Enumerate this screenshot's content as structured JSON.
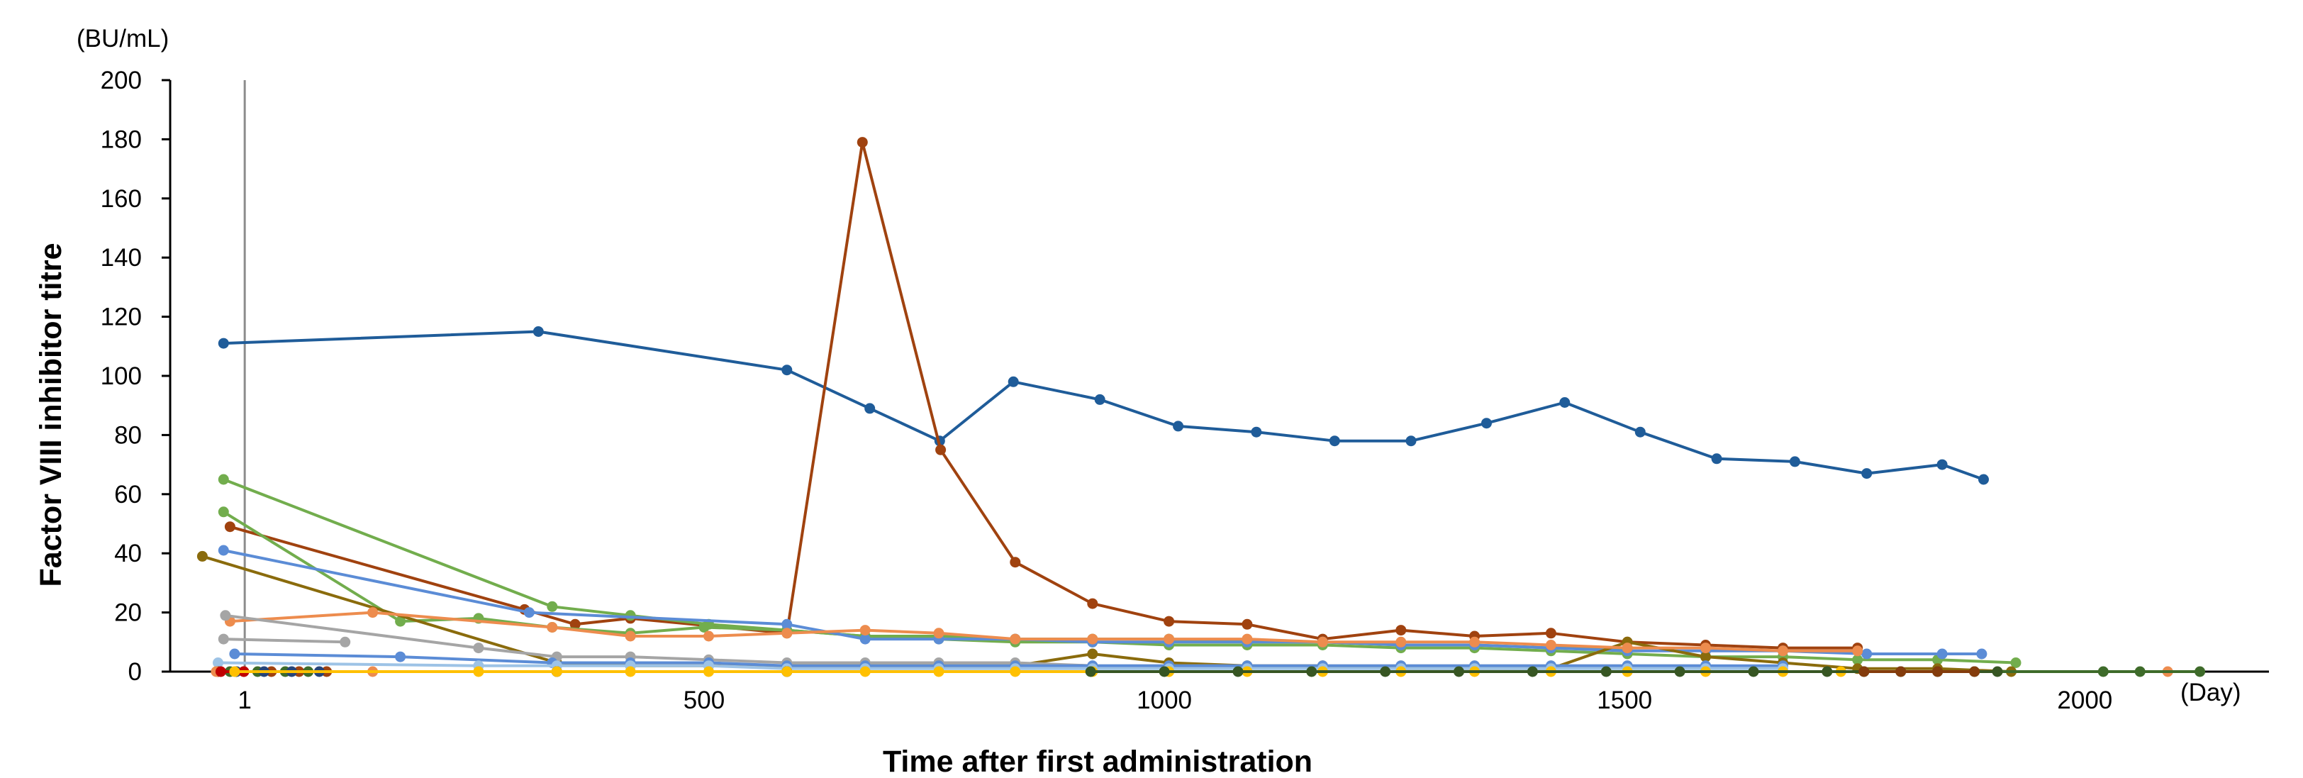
{
  "chart_data": {
    "type": "line",
    "xlabel": "Time after first administration",
    "ylabel": "Factor VIII inhibitor titre",
    "y_unit": "(BU/mL)",
    "x_unit": "(Day)",
    "xlim": [
      -80,
      2200
    ],
    "ylim": [
      0,
      200
    ],
    "x_ticks": [
      1,
      500,
      1000,
      1500,
      2000
    ],
    "y_ticks": [
      0,
      20,
      40,
      60,
      80,
      100,
      120,
      140,
      160,
      180,
      200
    ],
    "grid": false,
    "legend": "none",
    "reference_line_x": 1,
    "series": [
      {
        "color": "#1f5c99",
        "points": [
          [
            -22,
            111
          ],
          [
            320,
            115
          ],
          [
            590,
            102
          ],
          [
            680,
            89
          ],
          [
            756,
            78
          ],
          [
            836,
            98
          ],
          [
            930,
            92
          ],
          [
            1015,
            83
          ],
          [
            1100,
            81
          ],
          [
            1185,
            78
          ],
          [
            1268,
            78
          ],
          [
            1350,
            84
          ],
          [
            1435,
            91
          ],
          [
            1517,
            81
          ],
          [
            1600,
            72
          ],
          [
            1685,
            71
          ],
          [
            1763,
            67
          ],
          [
            1845,
            70
          ],
          [
            1890,
            65
          ]
        ]
      },
      {
        "color": "#a0420f",
        "points": [
          [
            -15,
            49
          ],
          [
            305,
            21
          ],
          [
            360,
            16
          ],
          [
            420,
            18
          ],
          [
            590,
            13
          ],
          [
            672,
            179
          ],
          [
            757,
            75
          ],
          [
            838,
            37
          ],
          [
            922,
            23
          ],
          [
            1005,
            17
          ],
          [
            1090,
            16
          ],
          [
            1172,
            11
          ],
          [
            1257,
            14
          ],
          [
            1337,
            12
          ],
          [
            1420,
            13
          ],
          [
            1503,
            10
          ],
          [
            1588,
            9
          ],
          [
            1672,
            8
          ],
          [
            1753,
            8
          ]
        ]
      },
      {
        "color": "#72ad4d",
        "points": [
          [
            -22,
            65
          ],
          [
            335,
            22
          ],
          [
            420,
            19
          ],
          [
            505,
            16
          ],
          [
            590,
            14
          ],
          [
            675,
            12
          ],
          [
            755,
            11
          ],
          [
            838,
            10
          ],
          [
            922,
            10
          ],
          [
            1005,
            9
          ],
          [
            1090,
            9
          ],
          [
            1172,
            9
          ],
          [
            1257,
            8
          ],
          [
            1337,
            8
          ],
          [
            1420,
            7
          ],
          [
            1503,
            6
          ],
          [
            1588,
            5
          ],
          [
            1672,
            5
          ],
          [
            1753,
            4
          ],
          [
            1840,
            4
          ],
          [
            1925,
            3
          ]
        ]
      },
      {
        "color": "#72ad4d",
        "points": [
          [
            -22,
            54
          ],
          [
            170,
            17
          ],
          [
            255,
            18
          ],
          [
            335,
            15
          ],
          [
            420,
            13
          ],
          [
            500,
            15
          ],
          [
            590,
            14
          ],
          [
            675,
            12
          ],
          [
            755,
            12
          ],
          [
            838,
            11
          ],
          [
            922,
            11
          ],
          [
            1005,
            11
          ],
          [
            1090,
            10
          ],
          [
            1172,
            10
          ],
          [
            1257,
            9
          ],
          [
            1337,
            9
          ],
          [
            1420,
            8
          ],
          [
            1503,
            8
          ]
        ]
      },
      {
        "color": "#5b8cd6",
        "points": [
          [
            -22,
            41
          ],
          [
            310,
            20
          ],
          [
            590,
            16
          ],
          [
            675,
            11
          ],
          [
            755,
            11
          ],
          [
            838,
            11
          ],
          [
            922,
            10
          ],
          [
            1005,
            10
          ],
          [
            1090,
            10
          ],
          [
            1172,
            10
          ],
          [
            1257,
            9
          ],
          [
            1337,
            9
          ],
          [
            1420,
            8
          ],
          [
            1503,
            7
          ],
          [
            1588,
            7
          ],
          [
            1672,
            7
          ],
          [
            1763,
            6
          ],
          [
            1845,
            6
          ],
          [
            1888,
            6
          ]
        ]
      },
      {
        "color": "#8a6b0c",
        "points": [
          [
            -45,
            39
          ],
          [
            340,
            3
          ],
          [
            420,
            2
          ],
          [
            505,
            2
          ],
          [
            590,
            2
          ],
          [
            675,
            2
          ],
          [
            755,
            2
          ],
          [
            838,
            2
          ],
          [
            922,
            6
          ],
          [
            1005,
            3
          ],
          [
            1090,
            2
          ],
          [
            1172,
            2
          ],
          [
            1257,
            1
          ],
          [
            1337,
            1
          ],
          [
            1420,
            1
          ],
          [
            1503,
            10
          ],
          [
            1588,
            5
          ],
          [
            1672,
            3
          ],
          [
            1753,
            1
          ],
          [
            1840,
            1
          ],
          [
            1920,
            0
          ]
        ]
      },
      {
        "color": "#ed8c4e",
        "points": [
          [
            -15,
            17
          ],
          [
            140,
            20
          ],
          [
            335,
            15
          ],
          [
            420,
            12
          ],
          [
            505,
            12
          ],
          [
            590,
            13
          ],
          [
            675,
            14
          ],
          [
            755,
            13
          ],
          [
            838,
            11
          ],
          [
            922,
            11
          ],
          [
            1005,
            11
          ],
          [
            1090,
            11
          ],
          [
            1172,
            10
          ],
          [
            1257,
            10
          ],
          [
            1337,
            10
          ],
          [
            1420,
            9
          ],
          [
            1503,
            8
          ],
          [
            1588,
            8
          ],
          [
            1672,
            7
          ],
          [
            1753,
            7
          ]
        ]
      },
      {
        "color": "#a5a5a5",
        "points": [
          [
            -20,
            19
          ],
          [
            255,
            8
          ],
          [
            340,
            5
          ],
          [
            420,
            5
          ],
          [
            505,
            4
          ],
          [
            590,
            3
          ],
          [
            675,
            3
          ],
          [
            755,
            3
          ],
          [
            838,
            3
          ],
          [
            922,
            2
          ],
          [
            1005,
            2
          ],
          [
            1090,
            2
          ],
          [
            1172,
            2
          ],
          [
            1257,
            2
          ],
          [
            1337,
            2
          ],
          [
            1420,
            2
          ],
          [
            1503,
            2
          ],
          [
            1588,
            2
          ]
        ]
      },
      {
        "color": "#a5a5a5",
        "points": [
          [
            -22,
            11
          ],
          [
            110,
            10
          ]
        ]
      },
      {
        "color": "#5b8cd6",
        "points": [
          [
            -10,
            6
          ],
          [
            170,
            5
          ],
          [
            335,
            3
          ],
          [
            420,
            3
          ],
          [
            505,
            3
          ],
          [
            590,
            2
          ],
          [
            675,
            2
          ],
          [
            755,
            2
          ],
          [
            838,
            2
          ],
          [
            922,
            2
          ],
          [
            1005,
            2
          ],
          [
            1090,
            2
          ],
          [
            1172,
            2
          ],
          [
            1257,
            2
          ],
          [
            1337,
            2
          ],
          [
            1420,
            2
          ],
          [
            1503,
            2
          ],
          [
            1588,
            2
          ],
          [
            1672,
            2
          ]
        ]
      },
      {
        "color": "#9dc3e6",
        "points": [
          [
            -28,
            3
          ],
          [
            255,
            2
          ],
          [
            340,
            2
          ],
          [
            420,
            2
          ],
          [
            505,
            2
          ],
          [
            590,
            1
          ],
          [
            675,
            1
          ],
          [
            755,
            1
          ],
          [
            838,
            1
          ],
          [
            922,
            1
          ],
          [
            1005,
            1
          ],
          [
            1090,
            1
          ],
          [
            1172,
            1
          ],
          [
            1257,
            1
          ],
          [
            1337,
            1
          ],
          [
            1420,
            1
          ],
          [
            1503,
            1
          ],
          [
            1588,
            1
          ],
          [
            1672,
            1
          ]
        ]
      },
      {
        "color": "#a0420f",
        "points": [
          [
            -28,
            0
          ],
          [
            0,
            0
          ],
          [
            30,
            0
          ],
          [
            60,
            0
          ],
          [
            90,
            0
          ]
        ]
      },
      {
        "color": "#ed8c4e",
        "points": [
          [
            -30,
            0
          ],
          [
            140,
            0
          ],
          [
            340,
            0
          ],
          [
            590,
            0
          ],
          [
            2090,
            0
          ]
        ]
      },
      {
        "color": "#3e6b2a",
        "points": [
          [
            -15,
            0
          ],
          [
            15,
            0
          ],
          [
            45,
            0
          ],
          [
            70,
            0
          ],
          [
            340,
            0
          ],
          [
            590,
            0
          ],
          [
            2020,
            0
          ],
          [
            2060,
            0
          ],
          [
            2125,
            0
          ]
        ]
      },
      {
        "color": "#264478",
        "points": [
          [
            -8,
            0
          ],
          [
            22,
            0
          ],
          [
            52,
            0
          ],
          [
            82,
            0
          ],
          [
            340,
            0
          ],
          [
            590,
            0
          ]
        ]
      },
      {
        "color": "#c00000",
        "points": [
          [
            -25,
            0
          ],
          [
            0,
            0
          ]
        ]
      },
      {
        "color": "#ffc000",
        "points": [
          [
            -10,
            0
          ],
          [
            255,
            0
          ],
          [
            340,
            0
          ],
          [
            420,
            0
          ],
          [
            505,
            0
          ],
          [
            590,
            0
          ],
          [
            675,
            0
          ],
          [
            755,
            0
          ],
          [
            838,
            0
          ],
          [
            922,
            0
          ],
          [
            1005,
            0
          ],
          [
            1090,
            0
          ],
          [
            1172,
            0
          ],
          [
            1257,
            0
          ],
          [
            1337,
            0
          ],
          [
            1420,
            0
          ],
          [
            1503,
            0
          ],
          [
            1588,
            0
          ],
          [
            1672,
            0
          ],
          [
            1735,
            0
          ]
        ]
      },
      {
        "color": "#375623",
        "points": [
          [
            920,
            0
          ],
          [
            1000,
            0
          ],
          [
            1080,
            0
          ],
          [
            1160,
            0
          ],
          [
            1240,
            0
          ],
          [
            1320,
            0
          ],
          [
            1400,
            0
          ],
          [
            1480,
            0
          ],
          [
            1560,
            0
          ],
          [
            1640,
            0
          ],
          [
            1720,
            0
          ],
          [
            1760,
            0
          ],
          [
            1800,
            0
          ],
          [
            1840,
            0
          ],
          [
            1880,
            0
          ],
          [
            1905,
            0
          ]
        ]
      },
      {
        "color": "#843c0c",
        "points": [
          [
            1760,
            0
          ],
          [
            1800,
            0
          ],
          [
            1840,
            0
          ],
          [
            1880,
            0
          ]
        ]
      }
    ]
  }
}
